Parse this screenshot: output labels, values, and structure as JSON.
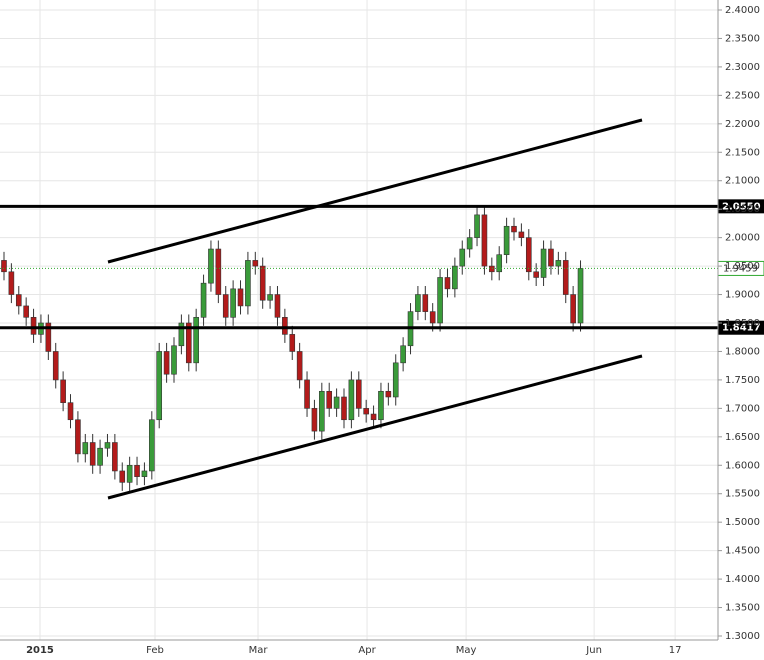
{
  "chart_data": {
    "type": "candlestick",
    "open": [
      1.96,
      1.94,
      1.9,
      1.88,
      1.86,
      1.83,
      1.85,
      1.8,
      1.75,
      1.71,
      1.68,
      1.62,
      1.64,
      1.6,
      1.63,
      1.64,
      1.59,
      1.57,
      1.6,
      1.58,
      1.59,
      1.68,
      1.8,
      1.76,
      1.81,
      1.85,
      1.78,
      1.86,
      1.92,
      1.98,
      1.9,
      1.86,
      1.91,
      1.88,
      1.96,
      1.95,
      1.89,
      1.9,
      1.86,
      1.83,
      1.8,
      1.75,
      1.7,
      1.66,
      1.73,
      1.7,
      1.72,
      1.68,
      1.75,
      1.7,
      1.69,
      1.68,
      1.73,
      1.72,
      1.78,
      1.81,
      1.87,
      1.9,
      1.87,
      1.85,
      1.93,
      1.91,
      1.95,
      1.98,
      2.0,
      2.04,
      1.95,
      1.94,
      1.97,
      2.02,
      2.01,
      2.0,
      1.94,
      1.93,
      1.98,
      1.95,
      1.96,
      1.9,
      1.85
    ],
    "high": [
      1.975,
      1.955,
      1.915,
      1.895,
      1.875,
      1.865,
      1.865,
      1.815,
      1.765,
      1.725,
      1.695,
      1.655,
      1.655,
      1.645,
      1.655,
      1.655,
      1.605,
      1.615,
      1.615,
      1.605,
      1.695,
      1.815,
      1.815,
      1.825,
      1.865,
      1.865,
      1.875,
      1.935,
      1.995,
      1.995,
      1.915,
      1.925,
      1.925,
      1.975,
      1.975,
      1.965,
      1.915,
      1.915,
      1.875,
      1.845,
      1.815,
      1.765,
      1.715,
      1.745,
      1.745,
      1.735,
      1.735,
      1.765,
      1.765,
      1.715,
      1.705,
      1.745,
      1.745,
      1.795,
      1.825,
      1.885,
      1.915,
      1.915,
      1.885,
      1.945,
      1.945,
      1.965,
      1.995,
      2.015,
      2.055,
      2.055,
      1.965,
      1.985,
      2.035,
      2.035,
      2.025,
      2.015,
      1.955,
      1.995,
      1.995,
      1.975,
      1.975,
      1.915,
      1.96
    ],
    "low": [
      1.925,
      1.885,
      1.865,
      1.845,
      1.815,
      1.815,
      1.785,
      1.735,
      1.695,
      1.665,
      1.605,
      1.605,
      1.585,
      1.585,
      1.615,
      1.575,
      1.555,
      1.555,
      1.565,
      1.565,
      1.575,
      1.665,
      1.745,
      1.745,
      1.795,
      1.765,
      1.765,
      1.845,
      1.905,
      1.885,
      1.845,
      1.845,
      1.865,
      1.865,
      1.935,
      1.875,
      1.875,
      1.845,
      1.815,
      1.785,
      1.735,
      1.685,
      1.645,
      1.645,
      1.685,
      1.685,
      1.665,
      1.665,
      1.685,
      1.675,
      1.665,
      1.665,
      1.705,
      1.705,
      1.765,
      1.795,
      1.855,
      1.855,
      1.835,
      1.835,
      1.895,
      1.895,
      1.935,
      1.965,
      1.985,
      1.935,
      1.925,
      1.925,
      1.955,
      1.995,
      1.985,
      1.925,
      1.915,
      1.915,
      1.935,
      1.935,
      1.885,
      1.835,
      1.835
    ],
    "close": [
      1.94,
      1.9,
      1.88,
      1.86,
      1.83,
      1.85,
      1.8,
      1.75,
      1.71,
      1.68,
      1.62,
      1.64,
      1.6,
      1.63,
      1.64,
      1.59,
      1.57,
      1.6,
      1.58,
      1.59,
      1.68,
      1.8,
      1.76,
      1.81,
      1.85,
      1.78,
      1.86,
      1.92,
      1.98,
      1.9,
      1.86,
      1.91,
      1.88,
      1.96,
      1.95,
      1.89,
      1.9,
      1.86,
      1.83,
      1.8,
      1.75,
      1.7,
      1.66,
      1.73,
      1.7,
      1.72,
      1.68,
      1.75,
      1.7,
      1.69,
      1.68,
      1.73,
      1.72,
      1.78,
      1.81,
      1.87,
      1.9,
      1.87,
      1.85,
      1.93,
      1.91,
      1.95,
      1.98,
      2.0,
      2.04,
      1.95,
      1.94,
      1.97,
      2.02,
      2.01,
      2.0,
      1.94,
      1.93,
      1.98,
      1.95,
      1.96,
      1.9,
      1.85,
      1.9459
    ],
    "up_color": "#3a9b3a",
    "down_color": "#b31b1b",
    "xlim": [
      -0.54,
      96.6
    ],
    "xticks": [
      {
        "value": 4.87,
        "label": "2015"
      },
      {
        "value": 20.43,
        "label": "Feb"
      },
      {
        "value": 34.37,
        "label": "Mar"
      },
      {
        "value": 49.12,
        "label": "Apr"
      },
      {
        "value": 62.52,
        "label": "May"
      },
      {
        "value": 79.84,
        "label": "Jun"
      },
      {
        "value": 90.8,
        "label": "17"
      }
    ],
    "ylim": [
      1.3,
      2.4
    ],
    "yticks": [
      {
        "value": 1.3,
        "label": "1.3000"
      },
      {
        "value": 1.35,
        "label": "1.3500"
      },
      {
        "value": 1.4,
        "label": "1.4000"
      },
      {
        "value": 1.45,
        "label": "1.4500"
      },
      {
        "value": 1.5,
        "label": "1.5000"
      },
      {
        "value": 1.55,
        "label": "1.5500"
      },
      {
        "value": 1.6,
        "label": "1.6000"
      },
      {
        "value": 1.65,
        "label": "1.6500"
      },
      {
        "value": 1.7,
        "label": "1.7000"
      },
      {
        "value": 1.75,
        "label": "1.7500"
      },
      {
        "value": 1.8,
        "label": "1.8000"
      },
      {
        "value": 1.85,
        "label": "1.8500"
      },
      {
        "value": 1.9,
        "label": "1.9000"
      },
      {
        "value": 1.95,
        "label": "1.9500"
      },
      {
        "value": 2.0,
        "label": "2.0000"
      },
      {
        "value": 2.05,
        "label": "2.0500"
      },
      {
        "value": 2.1,
        "label": "2.1000"
      },
      {
        "value": 2.15,
        "label": "2.1500"
      },
      {
        "value": 2.2,
        "label": "2.2000"
      },
      {
        "value": 2.25,
        "label": "2.2500"
      },
      {
        "value": 2.3,
        "label": "2.3000"
      },
      {
        "value": 2.35,
        "label": "2.3500"
      },
      {
        "value": 2.4,
        "label": "2.4000"
      }
    ],
    "grid": true,
    "levels": [
      {
        "value": 2.055,
        "label": "2.0550"
      },
      {
        "value": 1.8417,
        "label": "1.8417"
      }
    ],
    "last_price": {
      "value": 1.9459,
      "label": "1.9459",
      "color": "#2ea82e"
    }
  }
}
